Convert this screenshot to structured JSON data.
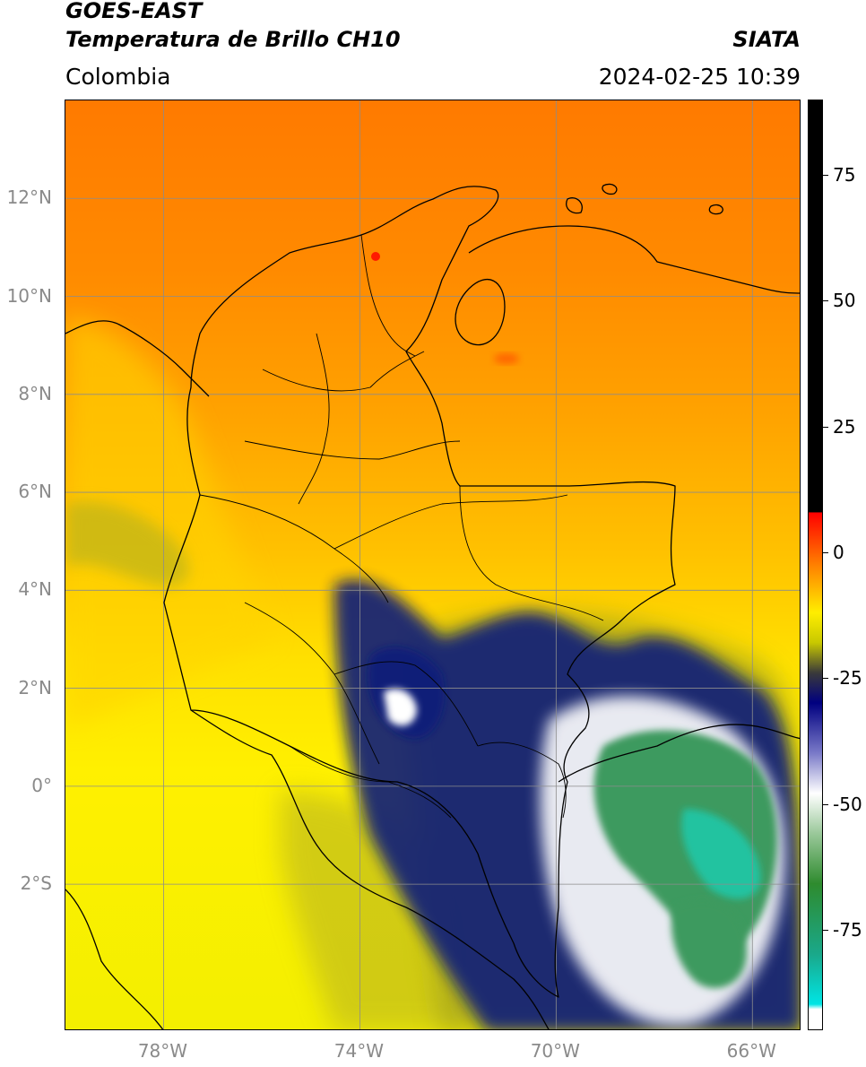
{
  "header": {
    "satellite": "GOES-EAST",
    "product": "Temperatura de Brillo CH10",
    "organization": "SIATA",
    "region": "Colombia",
    "datetime": "2024-02-25 10:39"
  },
  "map": {
    "lon_range": [
      -80,
      -65
    ],
    "lat_range": [
      -5,
      14
    ],
    "lat_ticks": [
      {
        "value": 12,
        "label": "12°N"
      },
      {
        "value": 10,
        "label": "10°N"
      },
      {
        "value": 8,
        "label": "8°N"
      },
      {
        "value": 6,
        "label": "6°N"
      },
      {
        "value": 4,
        "label": "4°N"
      },
      {
        "value": 2,
        "label": "2°N"
      },
      {
        "value": 0,
        "label": "0°"
      },
      {
        "value": -2,
        "label": "2°S"
      }
    ],
    "lon_ticks": [
      {
        "value": -78,
        "label": "78°W"
      },
      {
        "value": -74,
        "label": "74°W"
      },
      {
        "value": -70,
        "label": "70°W"
      },
      {
        "value": -66,
        "label": "66°W"
      }
    ],
    "grid": true,
    "colorbar": {
      "range": [
        -95,
        90
      ],
      "ticks": [
        {
          "value": 75,
          "label": "75"
        },
        {
          "value": 50,
          "label": "50"
        },
        {
          "value": 25,
          "label": "25"
        },
        {
          "value": 0,
          "label": "0"
        },
        {
          "value": -25,
          "label": "-25"
        },
        {
          "value": -50,
          "label": "-50"
        },
        {
          "value": -75,
          "label": "-75"
        }
      ],
      "stops": [
        {
          "value": 90,
          "color": "#000000"
        },
        {
          "value": 8,
          "color": "#000000"
        },
        {
          "value": 7.9,
          "color": "#ff0000"
        },
        {
          "value": -2,
          "color": "#ff7a00"
        },
        {
          "value": -12,
          "color": "#ffee00"
        },
        {
          "value": -18,
          "color": "#c8c800"
        },
        {
          "value": -24,
          "color": "#3a3a3a"
        },
        {
          "value": -30,
          "color": "#000080"
        },
        {
          "value": -40,
          "color": "#7a7ac8"
        },
        {
          "value": -48,
          "color": "#ffffff"
        },
        {
          "value": -56,
          "color": "#9ac89a"
        },
        {
          "value": -66,
          "color": "#2e8b2e"
        },
        {
          "value": -80,
          "color": "#1aa88a"
        },
        {
          "value": -90,
          "color": "#00e5e5"
        },
        {
          "value": -91,
          "color": "#ffffff"
        },
        {
          "value": -95,
          "color": "#ffffff"
        }
      ]
    },
    "fill_colors": {
      "orange_deep": "#ff7a00",
      "orange": "#ff9a00",
      "yellow": "#ffe600",
      "olive": "#b7b21e",
      "navy": "#0d1a7a",
      "white": "#ffffff",
      "green": "#3c9a5e",
      "teal": "#22c3a0"
    }
  }
}
